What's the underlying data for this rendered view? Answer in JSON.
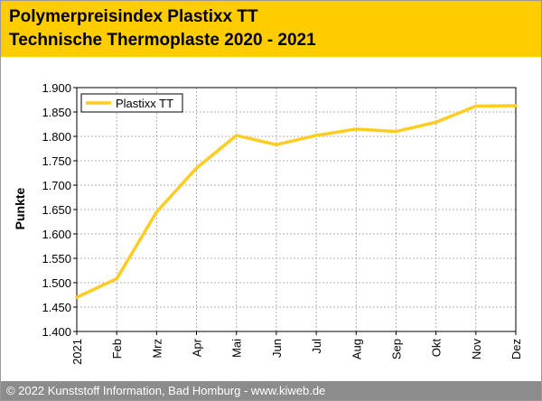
{
  "header": {
    "title_line1": "Polymerpreisindex Plastixx TT",
    "title_line2": "Technische Thermoplaste 2020 - 2021"
  },
  "footer": {
    "copyright": "© 2022 Kunststoff Information, Bad Homburg - www.kiweb.de"
  },
  "colors": {
    "header_bg": "#ffcc00",
    "series_line": "#ffcc22",
    "footer_bg": "#8c8c8c",
    "grid": "#b0b0b0"
  },
  "chart_data": {
    "type": "line",
    "title": "",
    "xlabel": "",
    "ylabel": "Punkte",
    "ylim": [
      1400,
      1900
    ],
    "yticks": [
      1400,
      1450,
      1500,
      1550,
      1600,
      1650,
      1700,
      1750,
      1800,
      1850,
      1900
    ],
    "ytick_labels": [
      "1.400",
      "1.450",
      "1.500",
      "1.550",
      "1.600",
      "1.650",
      "1.700",
      "1.750",
      "1.800",
      "1.850",
      "1.900"
    ],
    "categories": [
      "2021",
      "Feb",
      "Mrz",
      "Apr",
      "Mai",
      "Jun",
      "Jul",
      "Aug",
      "Sep",
      "Okt",
      "Nov",
      "Dez"
    ],
    "grid": true,
    "legend": "top-left",
    "series": [
      {
        "name": "Plastixx TT",
        "values": [
          1470,
          1508,
          1645,
          1735,
          1802,
          1783,
          1802,
          1815,
          1810,
          1829,
          1862,
          1863
        ]
      }
    ]
  }
}
